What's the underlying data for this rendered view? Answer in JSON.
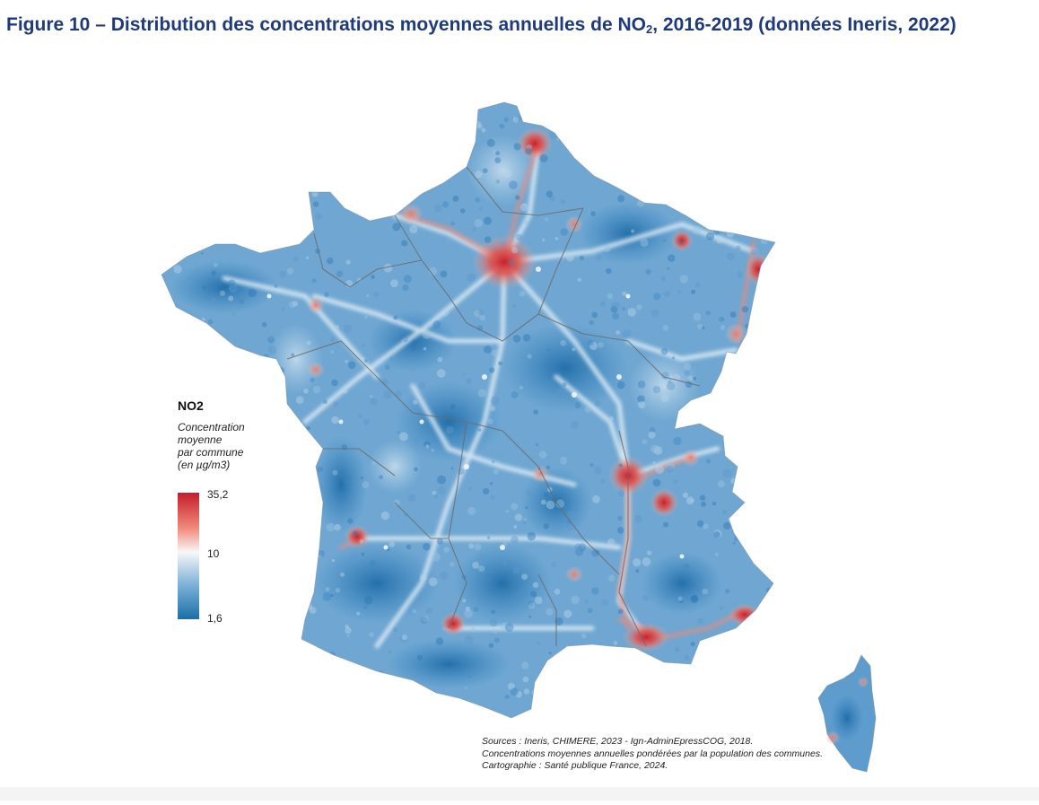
{
  "title": {
    "main": "Figure 10 – Distribution des concentrations moyennes annuelles de NO",
    "sub": "2",
    "rest": ", 2016-2019 (données Ineris, 2022)"
  },
  "legend": {
    "title": "NO2",
    "subtitle": "Concentration\nmoyenne\npar commune\n(en µg/m3)",
    "max": "35,2",
    "mid": "10",
    "min": "1,6",
    "colors": {
      "high": "#c41d2b",
      "upper": "#f08a7a",
      "mid": "#f7f7f7",
      "lower": "#7fb4d8",
      "low": "#1a6ea8"
    }
  },
  "sources": {
    "line1": "Sources : Ineris, CHIMERE, 2023 - Ign-AdminEpressCOG, 2018.",
    "line2": "Concentrations moyennes annuelles pondérées par la population des communes.",
    "line3": "Cartographie : Santé publique France, 2024."
  },
  "map": {
    "base_color": "#6fa7d2",
    "dark_color": "#2f7fbe",
    "light_color": "#dde9f2",
    "hotspot_color": "#d9323a"
  }
}
